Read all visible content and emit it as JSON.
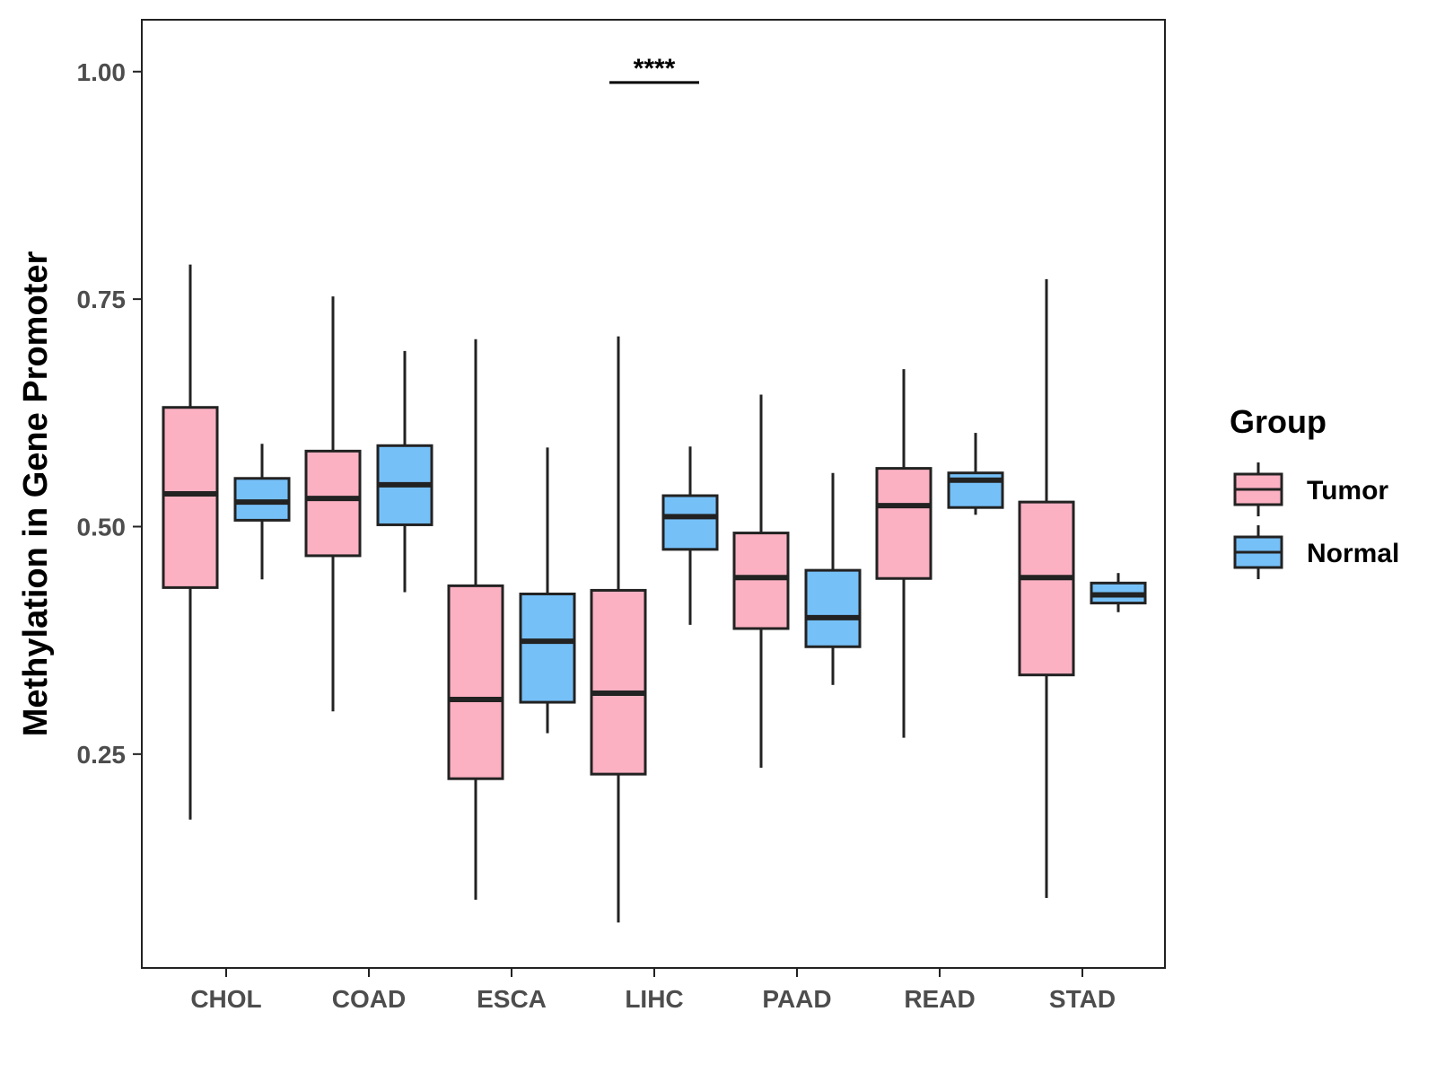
{
  "chart_data": {
    "type": "boxplot",
    "title": "",
    "xlabel": "",
    "ylabel": "Methylation in Gene Promoter",
    "ylim": [
      0.015,
      1.057
    ],
    "yticks": [
      0.25,
      0.5,
      0.75,
      1.0
    ],
    "ytick_labels": [
      "0.25",
      "0.50",
      "0.75",
      "1.00"
    ],
    "categories": [
      "CHOL",
      "COAD",
      "ESCA",
      "LIHC",
      "PAAD",
      "READ",
      "STAD"
    ],
    "legend": {
      "title": "Group",
      "position": "right",
      "entries": [
        {
          "name": "Tumor",
          "color": "#FBB1C2"
        },
        {
          "name": "Normal",
          "color": "#76C0F8"
        }
      ]
    },
    "series": [
      {
        "name": "Tumor",
        "color": "#FBB1C2",
        "boxes": [
          {
            "min": 0.178,
            "q1": 0.433,
            "median": 0.536,
            "q3": 0.631,
            "max": 0.788
          },
          {
            "min": 0.297,
            "q1": 0.468,
            "median": 0.531,
            "q3": 0.583,
            "max": 0.753
          },
          {
            "min": 0.09,
            "q1": 0.223,
            "median": 0.31,
            "q3": 0.435,
            "max": 0.706
          },
          {
            "min": 0.065,
            "q1": 0.228,
            "median": 0.317,
            "q3": 0.43,
            "max": 0.709
          },
          {
            "min": 0.235,
            "q1": 0.388,
            "median": 0.444,
            "q3": 0.493,
            "max": 0.645
          },
          {
            "min": 0.268,
            "q1": 0.443,
            "median": 0.523,
            "q3": 0.564,
            "max": 0.673
          },
          {
            "min": 0.092,
            "q1": 0.337,
            "median": 0.444,
            "q3": 0.527,
            "max": 0.772
          }
        ]
      },
      {
        "name": "Normal",
        "color": "#76C0F8",
        "boxes": [
          {
            "min": 0.442,
            "q1": 0.507,
            "median": 0.527,
            "q3": 0.553,
            "max": 0.591
          },
          {
            "min": 0.428,
            "q1": 0.502,
            "median": 0.546,
            "q3": 0.589,
            "max": 0.693
          },
          {
            "min": 0.273,
            "q1": 0.307,
            "median": 0.374,
            "q3": 0.426,
            "max": 0.587
          },
          {
            "min": 0.392,
            "q1": 0.475,
            "median": 0.511,
            "q3": 0.534,
            "max": 0.588
          },
          {
            "min": 0.326,
            "q1": 0.368,
            "median": 0.4,
            "q3": 0.452,
            "max": 0.559
          },
          {
            "min": 0.513,
            "q1": 0.521,
            "median": 0.551,
            "q3": 0.559,
            "max": 0.603
          },
          {
            "min": 0.406,
            "q1": 0.416,
            "median": 0.425,
            "q3": 0.438,
            "max": 0.449
          }
        ]
      }
    ],
    "annotations": [
      {
        "text": "****",
        "category": "LIHC",
        "y": 0.988
      }
    ]
  }
}
